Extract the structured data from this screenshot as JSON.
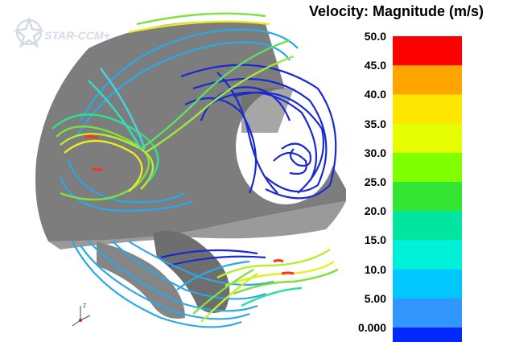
{
  "scene": {
    "logo": {
      "text": "STAR-CCM+",
      "color": "#d3dbe6",
      "icon": "star-ccm-logo-icon"
    },
    "geometry_color": "#808080",
    "triad_icon": "xyz-triad-icon"
  },
  "legend": {
    "title": "Velocity: Magnitude (m/s)",
    "ticks": [
      "50.0",
      "45.0",
      "40.0",
      "35.0",
      "30.0",
      "25.0",
      "20.0",
      "15.0",
      "10.0",
      "5.00",
      "0.000"
    ],
    "bands": [
      "#ff0000",
      "#ffa500",
      "#ffe600",
      "#e6ff00",
      "#7fff00",
      "#32e632",
      "#00e6a0",
      "#00f0d8",
      "#00c8ff",
      "#3296ff",
      "#0028ff"
    ]
  }
}
